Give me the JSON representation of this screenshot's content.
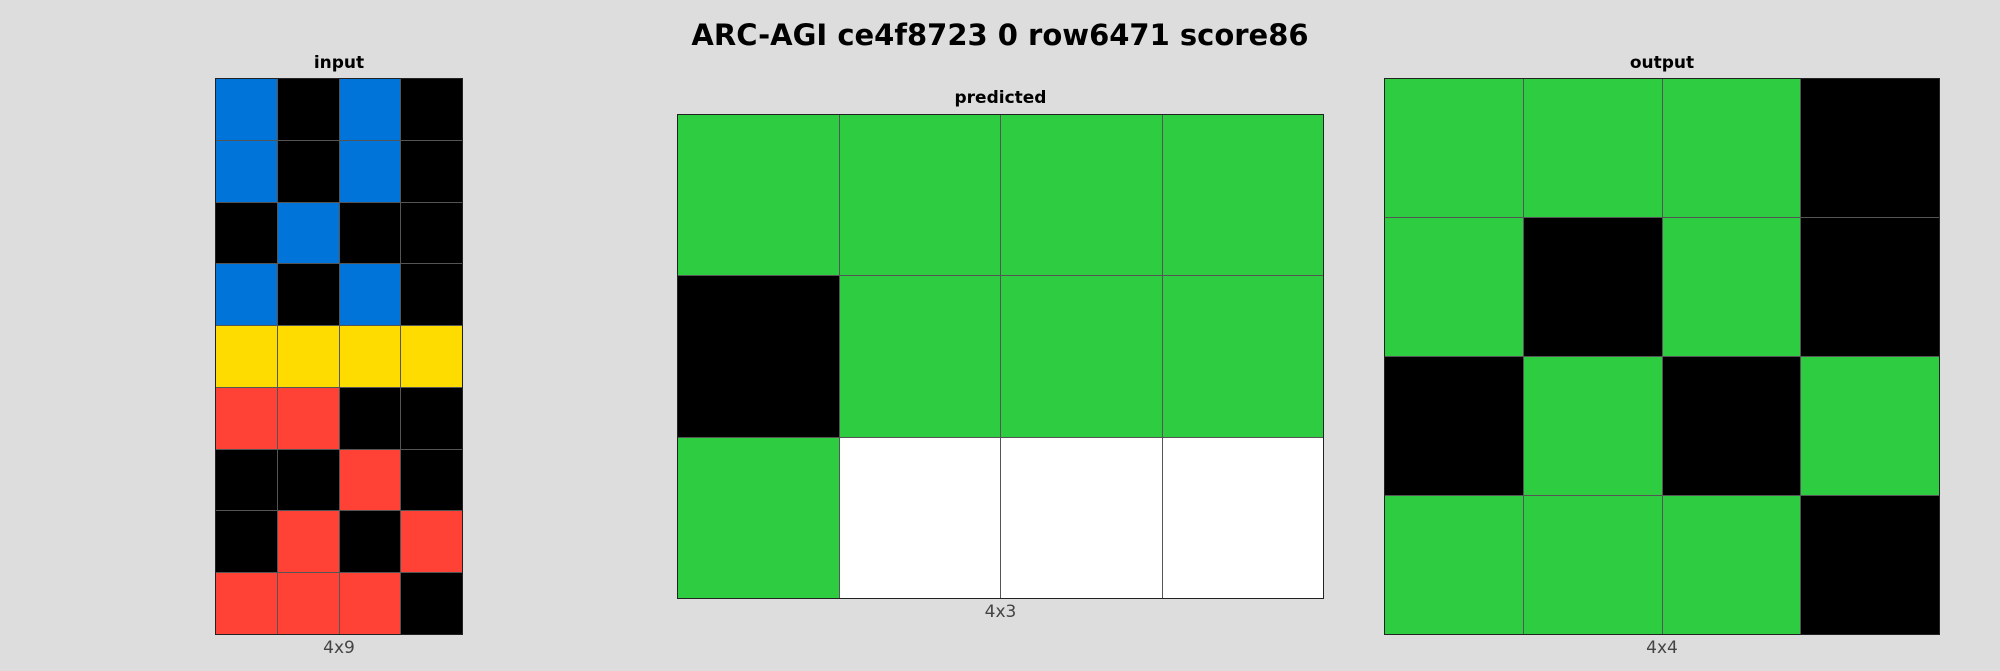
{
  "title": "ARC-AGI ce4f8723 0 row6471 score86",
  "palette": {
    "0": "#000000",
    "1": "#0074d9",
    "2": "#ff4136",
    "3": "#2ecc40",
    "4": "#ffdc00",
    "w": "#ffffff"
  },
  "panels": {
    "input": {
      "label": "input",
      "dims": "4x9",
      "rows": [
        [
          1,
          0,
          1,
          0
        ],
        [
          1,
          0,
          1,
          0
        ],
        [
          0,
          1,
          0,
          0
        ],
        [
          1,
          0,
          1,
          0
        ],
        [
          4,
          4,
          4,
          4
        ],
        [
          2,
          2,
          0,
          0
        ],
        [
          0,
          0,
          2,
          0
        ],
        [
          0,
          2,
          0,
          2
        ],
        [
          2,
          2,
          2,
          0
        ]
      ]
    },
    "predicted": {
      "label": "predicted",
      "dims": "4x3",
      "rows": [
        [
          3,
          3,
          3,
          3
        ],
        [
          0,
          3,
          3,
          3
        ],
        [
          3,
          "w",
          "w",
          "w"
        ]
      ]
    },
    "output": {
      "label": "output",
      "dims": "4x4",
      "rows": [
        [
          3,
          3,
          3,
          0
        ],
        [
          3,
          0,
          3,
          0
        ],
        [
          0,
          3,
          0,
          3
        ],
        [
          3,
          3,
          3,
          0
        ]
      ]
    }
  }
}
